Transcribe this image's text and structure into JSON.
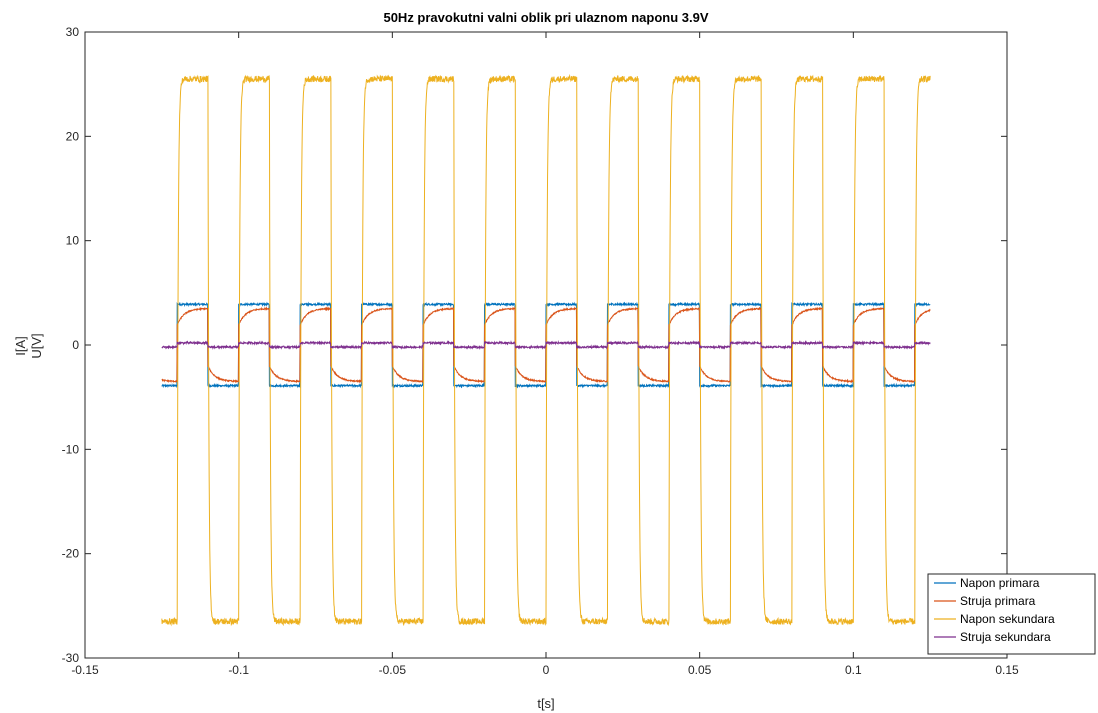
{
  "chart_data": {
    "type": "line",
    "title": "50Hz pravokutni valni oblik pri ulaznom naponu 3.9V",
    "xlabel": "t[s]",
    "ylabel": [
      "I[A]",
      "U[V]"
    ],
    "xlim": [
      -0.15,
      0.15
    ],
    "ylim": [
      -30,
      30
    ],
    "x_ticks": [
      -0.15,
      -0.1,
      -0.05,
      0,
      0.05,
      0.1,
      0.15
    ],
    "x_tick_labels": [
      "-0.15",
      "-0.1",
      "-0.05",
      "0",
      "0.05",
      "0.1",
      "0.15"
    ],
    "y_ticks": [
      -30,
      -20,
      -10,
      0,
      10,
      20,
      30
    ],
    "y_tick_labels": [
      "-30",
      "-20",
      "-10",
      "0",
      "10",
      "20",
      "30"
    ],
    "grid": false,
    "legend_position": "bottom-right",
    "waveform": {
      "frequency_hz": 50,
      "x_start": -0.125,
      "x_end": 0.125,
      "first_high_edge": -0.12,
      "high_half_period_s": 0.01
    },
    "series": [
      {
        "name": "Napon primara",
        "color": "#0072BD",
        "high": 3.9,
        "low": -3.9,
        "style": "square"
      },
      {
        "name": "Struja primara",
        "color": "#D95319",
        "high": 3.5,
        "low": -3.5,
        "start_high": 1.9,
        "start_low": -2.0,
        "style": "rc"
      },
      {
        "name": "Napon sekundara",
        "color": "#EDB120",
        "high": 25.5,
        "low": -26.5,
        "style": "square_soft"
      },
      {
        "name": "Struja sekundara",
        "color": "#7E2F8E",
        "high": 0.2,
        "low": -0.2,
        "style": "square"
      }
    ]
  }
}
